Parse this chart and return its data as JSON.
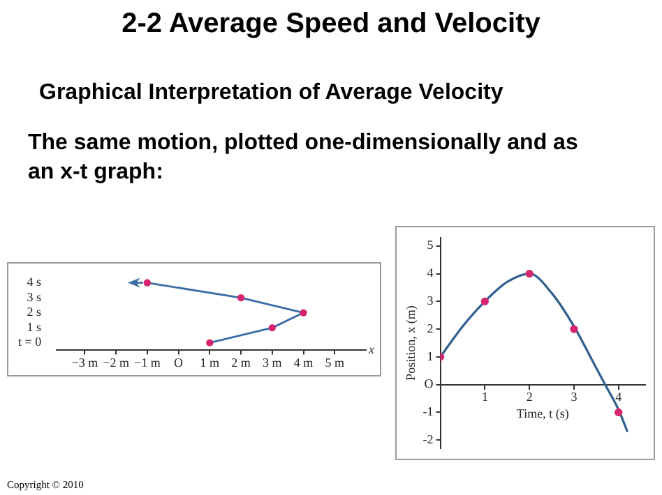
{
  "chart_data": [
    {
      "type": "scatter",
      "orientation": "horizontal",
      "title": "2-2 Average Speed and Velocity",
      "subtitle": "Graphical Interpretation of Average Velocity",
      "xlabel": "x",
      "categories": [
        "4 s",
        "3 s",
        "2 s",
        "1 s",
        "t = 0"
      ],
      "series": [
        {
          "type": "line",
          "color": "#3a6ea5",
          "marker": "none",
          "values": [
            -1,
            2,
            4,
            3,
            1
          ]
        },
        {
          "type": "scatter",
          "color": "#d6246e",
          "marker": "circle",
          "values": [
            -1,
            2,
            4,
            3,
            1
          ]
        }
      ],
      "xlim": [
        -3.9,
        6.0
      ],
      "xticks": [
        {
          "value": -3,
          "label": "−3 m"
        },
        {
          "value": -2,
          "label": "−2 m"
        },
        {
          "value": -1,
          "label": "−1 m"
        },
        {
          "value": 0,
          "label": "O"
        },
        {
          "value": 1,
          "label": "1 m"
        },
        {
          "value": 2,
          "label": "2 m"
        },
        {
          "value": 3,
          "label": "3 m"
        },
        {
          "value": 4,
          "label": "4 m"
        },
        {
          "value": 5,
          "label": "5 m"
        }
      ],
      "annotations": [
        "The same motion, plotted one-dimensionally and as an x-t graph:",
        "Copyright © 2010"
      ]
    },
    {
      "type": "line",
      "xlabel": "Time, t (s)",
      "ylabel": "Position, x (m)",
      "grid": false,
      "legend": false,
      "xlim": [
        0,
        4.6
      ],
      "xticks": [
        1,
        2,
        3,
        4
      ],
      "ylim": [
        -2.3,
        5.3
      ],
      "yticks": [
        -2,
        -1,
        {
          "value": 0,
          "label": "O"
        },
        1,
        2,
        3,
        4,
        5
      ],
      "series": [
        {
          "type": "line",
          "color": "#2f5f8f",
          "marker": "none",
          "x": [
            0,
            0.5,
            1,
            1.5,
            2,
            2.5,
            3,
            3.5,
            3.7,
            4,
            4.2
          ],
          "values": [
            1,
            2.1,
            3,
            3.7,
            4,
            3.3,
            2.1,
            0.6,
            0,
            -0.9,
            -1.7
          ]
        },
        {
          "type": "scatter",
          "color": "#d6246e",
          "marker": "circle",
          "x": [
            0,
            1,
            2,
            3,
            4
          ],
          "values": [
            1,
            3,
            4,
            2,
            -1
          ]
        }
      ]
    }
  ]
}
